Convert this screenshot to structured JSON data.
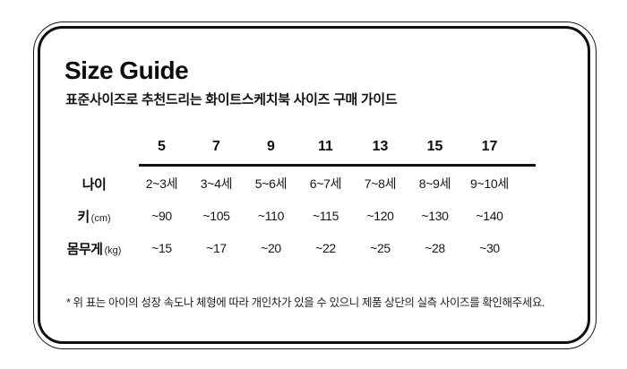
{
  "title": "Size Guide",
  "subtitle": "표준사이즈로 추천드리는 화이트스케치북 사이즈 구매 가이드",
  "table": {
    "columns": [
      "5",
      "7",
      "9",
      "11",
      "13",
      "15",
      "17"
    ],
    "rows": [
      {
        "label": "나이",
        "unit": "",
        "values": [
          "2~3세",
          "3~4세",
          "5~6세",
          "6~7세",
          "7~8세",
          "8~9세",
          "9~10세"
        ]
      },
      {
        "label": "키",
        "unit": "(cm)",
        "values": [
          "~90",
          "~105",
          "~110",
          "~115",
          "~120",
          "~130",
          "~140"
        ]
      },
      {
        "label": "몸무게",
        "unit": "(kg)",
        "values": [
          "~15",
          "~17",
          "~20",
          "~22",
          "~25",
          "~28",
          "~30"
        ]
      }
    ]
  },
  "footnote": "* 위 표는 아이의 성장 속도나 체형에 따라 개인차가 있을 수 있으니 제품 상단의 실측 사이즈를 확인해주세요.",
  "colors": {
    "text": "#111111",
    "border": "#0e0e0e",
    "background": "#ffffff"
  }
}
